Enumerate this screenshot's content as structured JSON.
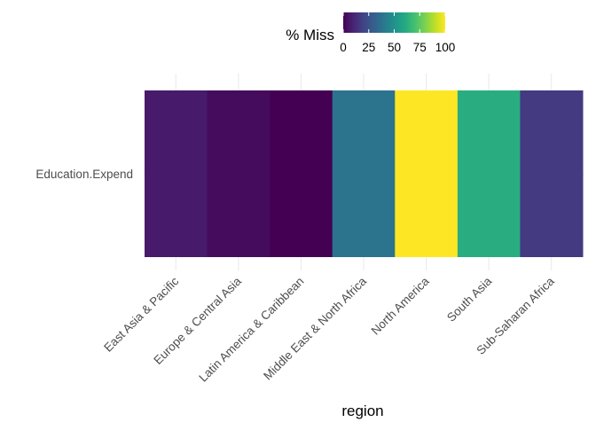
{
  "chart_data": {
    "type": "heatmap",
    "title": "",
    "xlabel": "region",
    "ylabel": "",
    "x_categories": [
      "East Asia & Pacific",
      "Europe & Central Asia",
      "Latin America & Caribbean",
      "Middle East & North Africa",
      "North America",
      "South Asia",
      "Sub-Saharan Africa"
    ],
    "y_categories": [
      "Education.Expend"
    ],
    "values": [
      [
        7,
        3,
        0,
        38,
        100,
        62,
        17
      ]
    ],
    "legend": {
      "title": "% Miss",
      "position": "top",
      "ticks": [
        "0",
        "25",
        "50",
        "75",
        "100"
      ],
      "range": [
        0,
        100
      ],
      "colormap": "viridis"
    },
    "grid": true
  }
}
